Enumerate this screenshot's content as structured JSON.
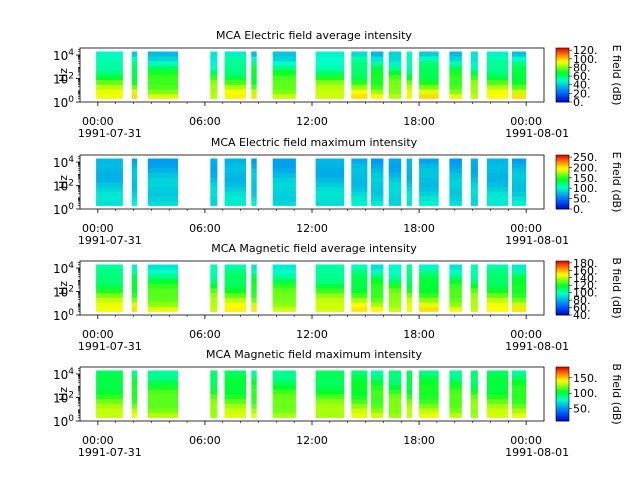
{
  "figure": {
    "background": "#ffffff"
  },
  "chart_data": [
    {
      "type": "heatmap",
      "title": "MCA  Electric field average intensity",
      "ylabel": "Hz",
      "colorbar_label": "E field (dB)",
      "colorbar_ticks": [
        "0.",
        "20.",
        "40.",
        "60.",
        "80.",
        "100.",
        "120."
      ],
      "colorbar_range": [
        0,
        125
      ],
      "colormap": "rainbow",
      "y_tick_labels": [
        {
          "base": "10",
          "exp": "0"
        },
        {
          "base": "10",
          "exp": "2"
        },
        {
          "base": "10",
          "exp": "4"
        }
      ],
      "y_range_log10": [
        0,
        4.6
      ],
      "x_tick_labels": [
        "00:00",
        "06:00",
        "12:00",
        "18:00",
        "00:00"
      ],
      "x_range_hours": [
        -1,
        25
      ],
      "date_start": "1991-07-31",
      "date_end": "1991-08-01",
      "data_intervals_hours": [
        [
          -0.1,
          1.4
        ],
        [
          1.9,
          2.2
        ],
        [
          2.8,
          4.5
        ],
        [
          6.3,
          6.7
        ],
        [
          7.1,
          8.3
        ],
        [
          8.6,
          8.9
        ],
        [
          9.8,
          11.1
        ],
        [
          12.2,
          13.8
        ],
        [
          14.2,
          15.1
        ],
        [
          15.3,
          16.0
        ],
        [
          16.3,
          17.0
        ],
        [
          17.3,
          17.6
        ],
        [
          18.0,
          19.1
        ],
        [
          19.7,
          20.4
        ],
        [
          20.9,
          21.3
        ],
        [
          21.8,
          23.0
        ],
        [
          23.2,
          24.0
        ]
      ],
      "data_freq_range_log10": [
        0.3,
        4.3
      ],
      "intensity_profile": {
        "low_freq_db": 95,
        "high_freq_db": 40
      }
    },
    {
      "type": "heatmap",
      "title": "MCA  Electric field maximum intensity",
      "ylabel": "Hz",
      "colorbar_label": "E field (dB)",
      "colorbar_ticks": [
        "0.",
        "50.",
        "100.",
        "150.",
        "200.",
        "250."
      ],
      "colorbar_range": [
        0,
        260
      ],
      "colormap": "rainbow",
      "y_tick_labels": [
        {
          "base": "10",
          "exp": "0"
        },
        {
          "base": "10",
          "exp": "2"
        },
        {
          "base": "10",
          "exp": "4"
        }
      ],
      "y_range_log10": [
        0,
        4.6
      ],
      "x_tick_labels": [
        "00:00",
        "06:00",
        "12:00",
        "18:00",
        "00:00"
      ],
      "x_range_hours": [
        -1,
        25
      ],
      "date_start": "1991-07-31",
      "date_end": "1991-08-01",
      "data_intervals_hours": [
        [
          -0.1,
          1.4
        ],
        [
          1.9,
          2.2
        ],
        [
          2.8,
          4.5
        ],
        [
          6.3,
          6.7
        ],
        [
          7.1,
          8.3
        ],
        [
          8.6,
          8.9
        ],
        [
          9.8,
          11.1
        ],
        [
          12.2,
          13.8
        ],
        [
          14.2,
          15.1
        ],
        [
          15.3,
          16.0
        ],
        [
          16.3,
          17.0
        ],
        [
          17.3,
          17.6
        ],
        [
          18.0,
          19.1
        ],
        [
          19.7,
          20.4
        ],
        [
          20.9,
          21.3
        ],
        [
          21.8,
          23.0
        ],
        [
          23.2,
          24.0
        ]
      ],
      "data_freq_range_log10": [
        0.3,
        4.3
      ],
      "intensity_profile": {
        "low_freq_db": 95,
        "high_freq_db": 70
      }
    },
    {
      "type": "heatmap",
      "title": "MCA  Magnetic field average intensity",
      "ylabel": "Hz",
      "colorbar_label": "B field (dB)",
      "colorbar_ticks": [
        "40.",
        "60.",
        "80.",
        "100.",
        "120.",
        "140.",
        "160.",
        "180."
      ],
      "colorbar_range": [
        40,
        185
      ],
      "colormap": "rainbow",
      "y_tick_labels": [
        {
          "base": "10",
          "exp": "0"
        },
        {
          "base": "10",
          "exp": "2"
        },
        {
          "base": "10",
          "exp": "4"
        }
      ],
      "y_range_log10": [
        0,
        4.6
      ],
      "x_tick_labels": [
        "00:00",
        "06:00",
        "12:00",
        "18:00",
        "00:00"
      ],
      "x_range_hours": [
        -1,
        25
      ],
      "date_start": "1991-07-31",
      "date_end": "1991-08-01",
      "data_intervals_hours": [
        [
          -0.1,
          1.4
        ],
        [
          1.9,
          2.2
        ],
        [
          2.8,
          4.5
        ],
        [
          6.3,
          6.7
        ],
        [
          7.1,
          8.3
        ],
        [
          8.6,
          8.9
        ],
        [
          9.8,
          11.1
        ],
        [
          12.2,
          13.8
        ],
        [
          14.2,
          15.1
        ],
        [
          15.3,
          16.0
        ],
        [
          16.3,
          17.0
        ],
        [
          17.3,
          17.6
        ],
        [
          18.0,
          19.1
        ],
        [
          19.7,
          20.4
        ],
        [
          20.9,
          21.3
        ],
        [
          21.8,
          23.0
        ],
        [
          23.2,
          24.0
        ]
      ],
      "data_freq_range_log10": [
        0.3,
        4.3
      ],
      "intensity_profile": {
        "low_freq_db": 150,
        "high_freq_db": 95
      }
    },
    {
      "type": "heatmap",
      "title": "MCA  Magnetic field maximum intensity",
      "ylabel": "Hz",
      "colorbar_label": "B field (dB)",
      "colorbar_ticks": [
        "50.",
        "100.",
        "150."
      ],
      "colorbar_range": [
        10,
        185
      ],
      "colormap": "rainbow",
      "y_tick_labels": [
        {
          "base": "10",
          "exp": "0"
        },
        {
          "base": "10",
          "exp": "2"
        },
        {
          "base": "10",
          "exp": "4"
        }
      ],
      "y_range_log10": [
        0,
        4.6
      ],
      "x_tick_labels": [
        "00:00",
        "06:00",
        "12:00",
        "18:00",
        "00:00"
      ],
      "x_range_hours": [
        -1,
        25
      ],
      "date_start": "1991-07-31",
      "date_end": "1991-08-01",
      "data_intervals_hours": [
        [
          -0.1,
          1.4
        ],
        [
          1.9,
          2.2
        ],
        [
          2.8,
          4.5
        ],
        [
          6.3,
          6.7
        ],
        [
          7.1,
          8.3
        ],
        [
          8.6,
          8.9
        ],
        [
          9.8,
          11.1
        ],
        [
          12.2,
          13.8
        ],
        [
          14.2,
          15.1
        ],
        [
          15.3,
          16.0
        ],
        [
          16.3,
          17.0
        ],
        [
          17.3,
          17.6
        ],
        [
          18.0,
          19.1
        ],
        [
          19.7,
          20.4
        ],
        [
          20.9,
          21.3
        ],
        [
          21.8,
          23.0
        ],
        [
          23.2,
          24.0
        ]
      ],
      "data_freq_range_log10": [
        0.3,
        4.3
      ],
      "intensity_profile": {
        "low_freq_db": 135,
        "high_freq_db": 90
      }
    }
  ]
}
